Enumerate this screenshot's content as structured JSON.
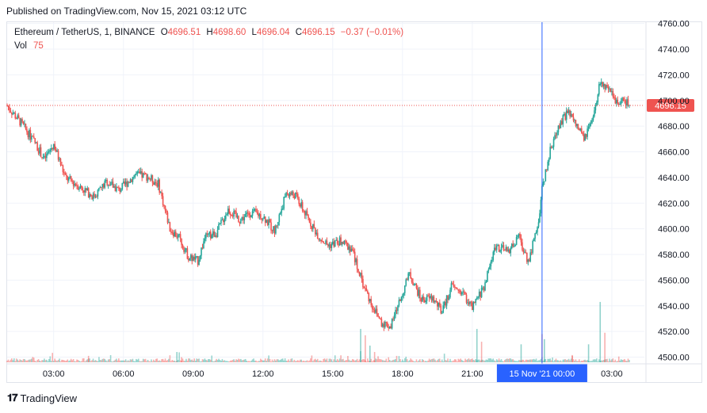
{
  "header": {
    "published": "Published on TradingView.com, Nov 15, 2021 03:12 UTC"
  },
  "legend": {
    "symbol": "Ethereum / TetherUS, 1, BINANCE",
    "open_label": "O",
    "open": "4696.51",
    "high_label": "H",
    "high": "4698.60",
    "low_label": "L",
    "low": "4696.04",
    "close_label": "C",
    "close": "4696.15",
    "change": "−0.37 (−0.01%)",
    "vol_label": "Vol",
    "vol": "75"
  },
  "footer": {
    "brand": "TradingView",
    "logo_icon": "tradingview-logo-icon"
  },
  "colors": {
    "up": "#26a69a",
    "down": "#ef5350",
    "crosshair": "#2962ff",
    "price_line": "#ef5350"
  },
  "chart_data": {
    "type": "candlestick",
    "symbol": "Ethereum / TetherUS",
    "interval": "1",
    "exchange": "BINANCE",
    "last_price": "4696.15",
    "y_ticks": [
      "4760.00",
      "4740.00",
      "4720.00",
      "4700.00",
      "4680.00",
      "4660.00",
      "4640.00",
      "4620.00",
      "4600.00",
      "4580.00",
      "4560.00",
      "4540.00",
      "4520.00",
      "4500.00"
    ],
    "ylim": [
      4496,
      4761
    ],
    "x_ticks": [
      "03:00",
      "06:00",
      "09:00",
      "12:00",
      "15:00",
      "18:00",
      "21:00",
      "03:00"
    ],
    "x_tick_hours": [
      3,
      6,
      9,
      12,
      15,
      18,
      21,
      27
    ],
    "xlim_hours": [
      1,
      28.4
    ],
    "crosshair_label": "15 Nov '21   00:00",
    "crosshair_hour": 24,
    "grid": true,
    "price_path": [
      [
        1.0,
        4696
      ],
      [
        1.7,
        4680
      ],
      [
        2.2,
        4667
      ],
      [
        2.6,
        4654
      ],
      [
        3.0,
        4666
      ],
      [
        3.5,
        4640
      ],
      [
        4.2,
        4632
      ],
      [
        4.7,
        4625
      ],
      [
        5.3,
        4637
      ],
      [
        5.8,
        4630
      ],
      [
        6.5,
        4642
      ],
      [
        7.0,
        4641
      ],
      [
        7.5,
        4635
      ],
      [
        8.0,
        4600
      ],
      [
        8.4,
        4593
      ],
      [
        8.8,
        4578
      ],
      [
        9.2,
        4575
      ],
      [
        9.5,
        4593
      ],
      [
        10.0,
        4597
      ],
      [
        10.5,
        4615
      ],
      [
        11.0,
        4607
      ],
      [
        11.5,
        4613
      ],
      [
        12.0,
        4610
      ],
      [
        12.5,
        4598
      ],
      [
        13.0,
        4628
      ],
      [
        13.4,
        4626
      ],
      [
        13.8,
        4612
      ],
      [
        14.4,
        4594
      ],
      [
        14.8,
        4587
      ],
      [
        15.3,
        4590
      ],
      [
        15.8,
        4585
      ],
      [
        16.3,
        4557
      ],
      [
        16.7,
        4540
      ],
      [
        17.1,
        4527
      ],
      [
        17.5,
        4524
      ],
      [
        17.8,
        4540
      ],
      [
        18.3,
        4565
      ],
      [
        18.8,
        4545
      ],
      [
        19.3,
        4546
      ],
      [
        19.7,
        4535
      ],
      [
        20.1,
        4555
      ],
      [
        20.6,
        4550
      ],
      [
        21.0,
        4538
      ],
      [
        21.5,
        4555
      ],
      [
        22.0,
        4587
      ],
      [
        22.5,
        4582
      ],
      [
        23.0,
        4593
      ],
      [
        23.4,
        4575
      ],
      [
        23.8,
        4600
      ],
      [
        24.0,
        4630
      ],
      [
        24.3,
        4658
      ],
      [
        24.7,
        4680
      ],
      [
        25.1,
        4691
      ],
      [
        25.5,
        4680
      ],
      [
        25.8,
        4670
      ],
      [
        26.2,
        4685
      ],
      [
        26.5,
        4715
      ],
      [
        26.8,
        4708
      ],
      [
        27.2,
        4700
      ],
      [
        27.5,
        4700
      ],
      [
        27.8,
        4696.15
      ]
    ],
    "volume_spikes": [
      [
        4.5,
        4501
      ],
      [
        8.3,
        4504
      ],
      [
        8.5,
        4500
      ],
      [
        16.2,
        4522
      ],
      [
        16.4,
        4517
      ],
      [
        16.6,
        4509
      ],
      [
        16.8,
        4504
      ],
      [
        21.2,
        4522
      ],
      [
        21.4,
        4512
      ],
      [
        23.1,
        4510
      ],
      [
        24.0,
        4518
      ],
      [
        24.1,
        4514
      ],
      [
        25.3,
        4501
      ],
      [
        26.5,
        4543
      ],
      [
        26.7,
        4519
      ],
      [
        26.0,
        4510
      ]
    ]
  }
}
